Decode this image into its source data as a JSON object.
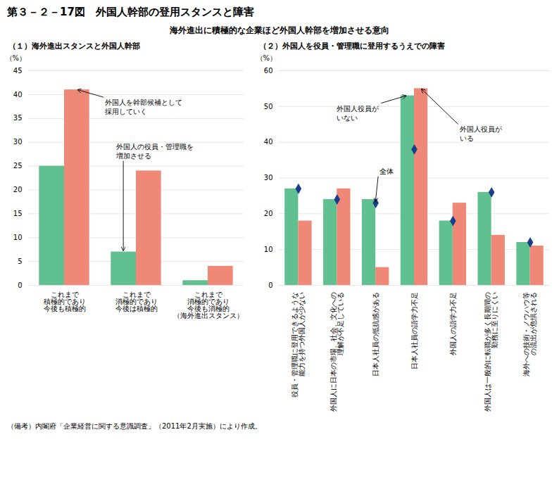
{
  "title": "第３－２－17図　外国人幹部の登用スタンスと障害",
  "subtitle": "海外進出に積極的な企業ほど外国人幹部を増加させる意向",
  "caption": "（備考）内閣府「企業経営に関する意識調査」（2011年2月実施）により作成。",
  "chart_data": [
    {
      "type": "bar",
      "title": "（１）海外進出スタンスと外国人幹部",
      "ylabel": "（%）",
      "categories": [
        "これまで\n積極的であり\n今後も積極的",
        "これまで\n消極的であり\n今後は積極的",
        "これまで\n消極的であり\n今後も消極的\n（海外進出スタンス）"
      ],
      "series": [
        {
          "color": "#60c090",
          "values": [
            25,
            7,
            1
          ]
        },
        {
          "color": "#f08878",
          "values": [
            41,
            24,
            4
          ]
        }
      ],
      "ylim": [
        0,
        45
      ],
      "yticks": [
        0,
        5,
        10,
        15,
        20,
        25,
        30,
        35,
        40,
        45
      ],
      "grid": true,
      "annotations": [
        {
          "text": "外国人を幹部候補として\n採用していく",
          "x": "これまで\n積極的であり\n今後も積極的",
          "y": 41
        },
        {
          "text": "外国人の役員・管理職を\n増加させる",
          "x": "これまで\n消極的であり\n今後は積極的",
          "y": 7
        }
      ]
    },
    {
      "type": "bar",
      "title": "（２）外国人を役員・管理職に登用するうえでの障害",
      "ylabel": "（%）",
      "categories": [
        "役員・管理職に登用できるような\n能力を持つ外国人が少ない",
        "外国人に日本の市場、社会、文化への\n理解が不足している",
        "日本人社員の抵抗感がある",
        "日本人社員の語学力不足",
        "外国人の語学力不足",
        "外国人は一般的に転職が多く長期間の\n勤務に至りにくい",
        "海外への技術・ノウハウ等\nの流出が危惧される"
      ],
      "series": [
        {
          "type": "bar",
          "color": "#60c090",
          "values": [
            27,
            24,
            24,
            53,
            18,
            26,
            12
          ]
        },
        {
          "type": "bar",
          "color": "#f08878",
          "values": [
            18,
            27,
            5,
            55,
            23,
            14,
            11
          ]
        },
        {
          "type": "scatter",
          "marker": "diamond",
          "color": "#1a3e8c",
          "values": [
            27,
            24,
            23,
            38,
            18,
            26,
            12
          ]
        }
      ],
      "ylim": [
        0,
        60
      ],
      "yticks": [
        0,
        10,
        20,
        30,
        40,
        50,
        60
      ],
      "grid": true,
      "annotations": [
        {
          "text": "外国人役員が\nいない",
          "x": "日本人社員の語学力不足",
          "y": 53
        },
        {
          "text": "全体",
          "x": "日本人社員の抵抗感がある",
          "y": 23
        },
        {
          "text": "外国人役員が\nいる",
          "x": "日本人社員の語学力不足",
          "y": 55
        }
      ]
    }
  ]
}
